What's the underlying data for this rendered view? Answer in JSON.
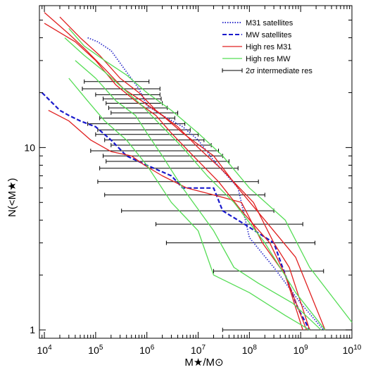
{
  "chart_data": {
    "type": "line",
    "title": "",
    "xlabel": "M★/M⊙",
    "ylabel": "N(<M★)",
    "x_scale": "log",
    "y_scale": "log",
    "xlim": [
      8000,
      10000000000
    ],
    "ylim": [
      0.9,
      60
    ],
    "x_ticks": [
      {
        "value": 10000,
        "base": "10",
        "exp": "4"
      },
      {
        "value": 100000,
        "base": "10",
        "exp": "5"
      },
      {
        "value": 1000000,
        "base": "10",
        "exp": "6"
      },
      {
        "value": 10000000,
        "base": "10",
        "exp": "7"
      },
      {
        "value": 100000000,
        "base": "10",
        "exp": "8"
      },
      {
        "value": 1000000000,
        "base": "10",
        "exp": "9"
      },
      {
        "value": 10000000000,
        "base": "10",
        "exp": "10"
      }
    ],
    "y_ticks": [
      {
        "value": 1,
        "label": "1"
      },
      {
        "value": 10,
        "label": "10"
      }
    ],
    "legend_position": "top-right",
    "legend": [
      {
        "label": "M31 satellites",
        "color": "#3333cc",
        "style": "dotted"
      },
      {
        "label": "MW satellites",
        "color": "#1a1acc",
        "style": "dashed"
      },
      {
        "label": "High res M31",
        "color": "#e02020",
        "style": "solid"
      },
      {
        "label": "High res MW",
        "color": "#55dd55",
        "style": "solid"
      },
      {
        "label": "2σ intermediate res",
        "color": "#000000",
        "style": "errorbar"
      }
    ],
    "series": [
      {
        "name": "M31 satellites",
        "kind": "obs_m31",
        "x": [
          70000,
          110000,
          200000,
          400000,
          700000,
          1000000,
          2000000,
          5000000,
          10000000,
          20000000,
          60000000,
          100000000,
          300000000,
          1000000000,
          2800000000
        ],
        "y": [
          40,
          38,
          34,
          26,
          21,
          17,
          15,
          13,
          11,
          8.5,
          6,
          3.2,
          2.2,
          1.4,
          1
        ]
      },
      {
        "name": "MW satellites",
        "kind": "obs_mw",
        "x": [
          9000,
          20000,
          30000,
          50000,
          100000,
          200000,
          400000,
          1000000,
          3000000,
          5000000,
          20000000,
          30000000,
          80000000,
          300000000,
          500000000,
          900000000,
          1500000000
        ],
        "y": [
          20,
          16,
          15,
          14,
          13,
          11,
          9,
          8,
          7,
          6,
          6,
          4.5,
          3.8,
          3,
          2,
          1.3,
          1
        ]
      },
      {
        "name": "High res M31",
        "kind": "m31",
        "x": [
          10000,
          30000,
          60000,
          150000,
          350000,
          800000,
          2000000,
          5000000,
          20000000,
          60000000,
          200000000,
          800000000,
          3000000000
        ],
        "y": [
          55,
          42,
          35,
          27,
          21,
          18,
          15,
          12,
          9,
          6,
          4,
          2.5,
          1
        ]
      },
      {
        "name": "High res M31",
        "kind": "m31",
        "x": [
          20000,
          50000,
          120000,
          300000,
          700000,
          1500000,
          4000000,
          10000000,
          30000000,
          120000000,
          300000000,
          600000000,
          1500000000
        ],
        "y": [
          52,
          40,
          32,
          24,
          20,
          16,
          13,
          10,
          7.5,
          5,
          3,
          2.2,
          1
        ]
      },
      {
        "name": "High res M31",
        "kind": "m31",
        "x": [
          10000,
          40000,
          100000,
          250000,
          600000,
          1500000,
          3000000,
          8000000,
          25000000,
          70000000,
          250000000,
          500000000,
          1300000000
        ],
        "y": [
          48,
          38,
          30,
          22,
          18,
          15,
          12,
          9,
          6.5,
          4.5,
          3,
          2,
          1
        ]
      },
      {
        "name": "High res M31",
        "kind": "m31",
        "x": [
          12000,
          30000,
          80000,
          200000,
          500000,
          900000,
          2000000,
          6000000,
          20000000,
          70000000,
          180000000,
          500000000,
          1100000000
        ],
        "y": [
          16,
          14,
          11,
          9.5,
          9,
          8,
          7,
          6,
          5.5,
          5,
          3,
          2,
          1
        ]
      },
      {
        "name": "High res MW",
        "kind": "mw",
        "x": [
          30000,
          60000,
          150000,
          400000,
          1000000,
          3000000,
          10000000,
          30000000,
          100000000,
          500000000,
          1500000000,
          10000000000
        ],
        "y": [
          45,
          36,
          30,
          25,
          20,
          16,
          12,
          9,
          6,
          4,
          2.2,
          1.1
        ]
      },
      {
        "name": "High res MW",
        "kind": "mw",
        "x": [
          25000,
          60000,
          150000,
          350000,
          800000,
          2000000,
          5000000,
          15000000,
          50000000,
          200000000,
          800000000,
          3000000000
        ],
        "y": [
          40,
          32,
          26,
          21,
          17,
          13,
          10,
          7,
          5,
          3,
          1.6,
          1
        ]
      },
      {
        "name": "High res MW",
        "kind": "mw",
        "x": [
          40000,
          100000,
          250000,
          600000,
          1000000,
          2000000,
          5000000,
          20000000,
          50000000,
          150000000,
          700000000,
          2500000000
        ],
        "y": [
          30,
          24,
          18,
          15,
          12,
          9,
          6,
          3.5,
          2.2,
          1.8,
          1.4,
          1
        ]
      },
      {
        "name": "High res MW",
        "kind": "mw",
        "x": [
          30000,
          70000,
          150000,
          400000,
          1000000,
          3000000,
          10000000,
          20000000,
          100000000,
          500000000,
          1500000000
        ],
        "y": [
          24,
          18,
          14,
          11,
          8,
          5,
          3.5,
          2,
          1.6,
          1.2,
          1
        ]
      }
    ],
    "error_bars": [
      {
        "y": 23,
        "xmin": 60000,
        "xmax": 1100000
      },
      {
        "y": 21,
        "xmin": 55000,
        "xmax": 1800000
      },
      {
        "y": 19.5,
        "xmin": 100000,
        "xmax": 1800000
      },
      {
        "y": 18.5,
        "xmin": 140000,
        "xmax": 1900000
      },
      {
        "y": 17.5,
        "xmin": 160000,
        "xmax": 2000000
      },
      {
        "y": 16.5,
        "xmin": 180000,
        "xmax": 2500000
      },
      {
        "y": 15.5,
        "xmin": 200000,
        "xmax": 4000000
      },
      {
        "y": 14.5,
        "xmin": 120000,
        "xmax": 3500000
      },
      {
        "y": 13.5,
        "xmin": 70000,
        "xmax": 5500000
      },
      {
        "y": 12.5,
        "xmin": 110000,
        "xmax": 7000000
      },
      {
        "y": 11.8,
        "xmin": 100000,
        "xmax": 10000000
      },
      {
        "y": 11,
        "xmin": 150000,
        "xmax": 13000000
      },
      {
        "y": 10.3,
        "xmin": 200000,
        "xmax": 18000000
      },
      {
        "y": 9.6,
        "xmin": 80000,
        "xmax": 25000000
      },
      {
        "y": 9,
        "xmin": 140000,
        "xmax": 30000000
      },
      {
        "y": 8.4,
        "xmin": 160000,
        "xmax": 40000000
      },
      {
        "y": 7.7,
        "xmin": 120000,
        "xmax": 60000000
      },
      {
        "y": 6.5,
        "xmin": 110000,
        "xmax": 150000000
      },
      {
        "y": 5.5,
        "xmin": 150000,
        "xmax": 200000000
      },
      {
        "y": 4.5,
        "xmin": 320000,
        "xmax": 300000000
      },
      {
        "y": 3.8,
        "xmin": 1500000,
        "xmax": 1100000000
      },
      {
        "y": 3,
        "xmin": 2400000,
        "xmax": 1900000000
      },
      {
        "y": 2.1,
        "xmin": 20000000,
        "xmax": 2800000000
      },
      {
        "y": 1,
        "xmin": 30000000,
        "xmax": 10000000000
      }
    ],
    "colors": {
      "m31": "#e02020",
      "mw": "#55dd55",
      "obs_m31": "#3333cc",
      "obs_mw": "#1a1acc",
      "errorbar": "#000000",
      "axis": "#000000"
    }
  }
}
